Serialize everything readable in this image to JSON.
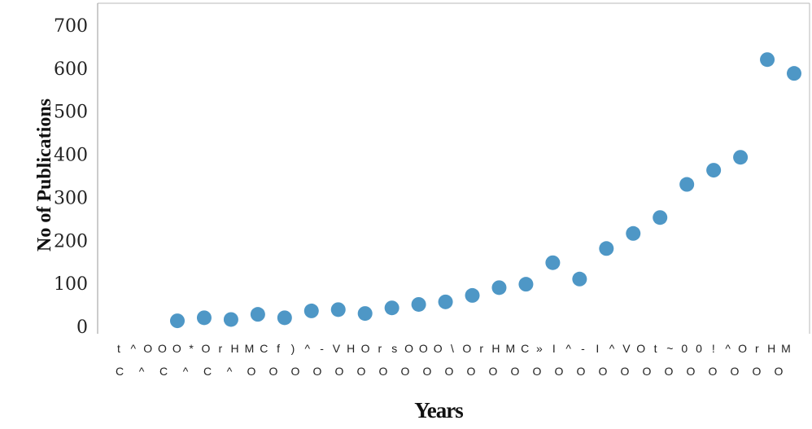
{
  "chart_data": {
    "type": "scatter",
    "title": "",
    "xlabel": "Years",
    "ylabel": "No of Publications",
    "ylim": [
      0,
      700
    ],
    "yticks": [
      0,
      100,
      200,
      300,
      400,
      500,
      600,
      700
    ],
    "x_tick_labels_row1": [
      "t",
      "^",
      "O",
      "O",
      "O",
      "*",
      "O",
      "r",
      "H",
      "M",
      "C",
      "f",
      ")",
      "^",
      "-",
      "V",
      "H",
      "O",
      "r",
      "s",
      "O",
      "O",
      "O",
      "\\",
      "O",
      "r",
      "H",
      "M",
      "C",
      "»",
      "I",
      "^",
      "-",
      "I",
      "^",
      "V",
      "O",
      "t",
      "~",
      "0",
      "0",
      "!",
      "^",
      "O",
      "r",
      "H",
      "M"
    ],
    "x_tick_labels_row2": [
      "C",
      "^",
      "C",
      "^",
      "C",
      "^",
      "O",
      "O",
      "O",
      "O",
      "O",
      "O",
      "O",
      "O",
      "O",
      "O",
      "O",
      "O",
      "O",
      "O",
      "O",
      "O",
      "O",
      "O",
      "O",
      "O",
      "O",
      "O",
      "O",
      "O",
      "O"
    ],
    "marker_color": "#4e97c6",
    "grid": false,
    "values": [
      15,
      22,
      18,
      30,
      22,
      38,
      41,
      32,
      45,
      53,
      59,
      74,
      92,
      100,
      150,
      112,
      183,
      218,
      255,
      332,
      365,
      395,
      622,
      590
    ]
  }
}
